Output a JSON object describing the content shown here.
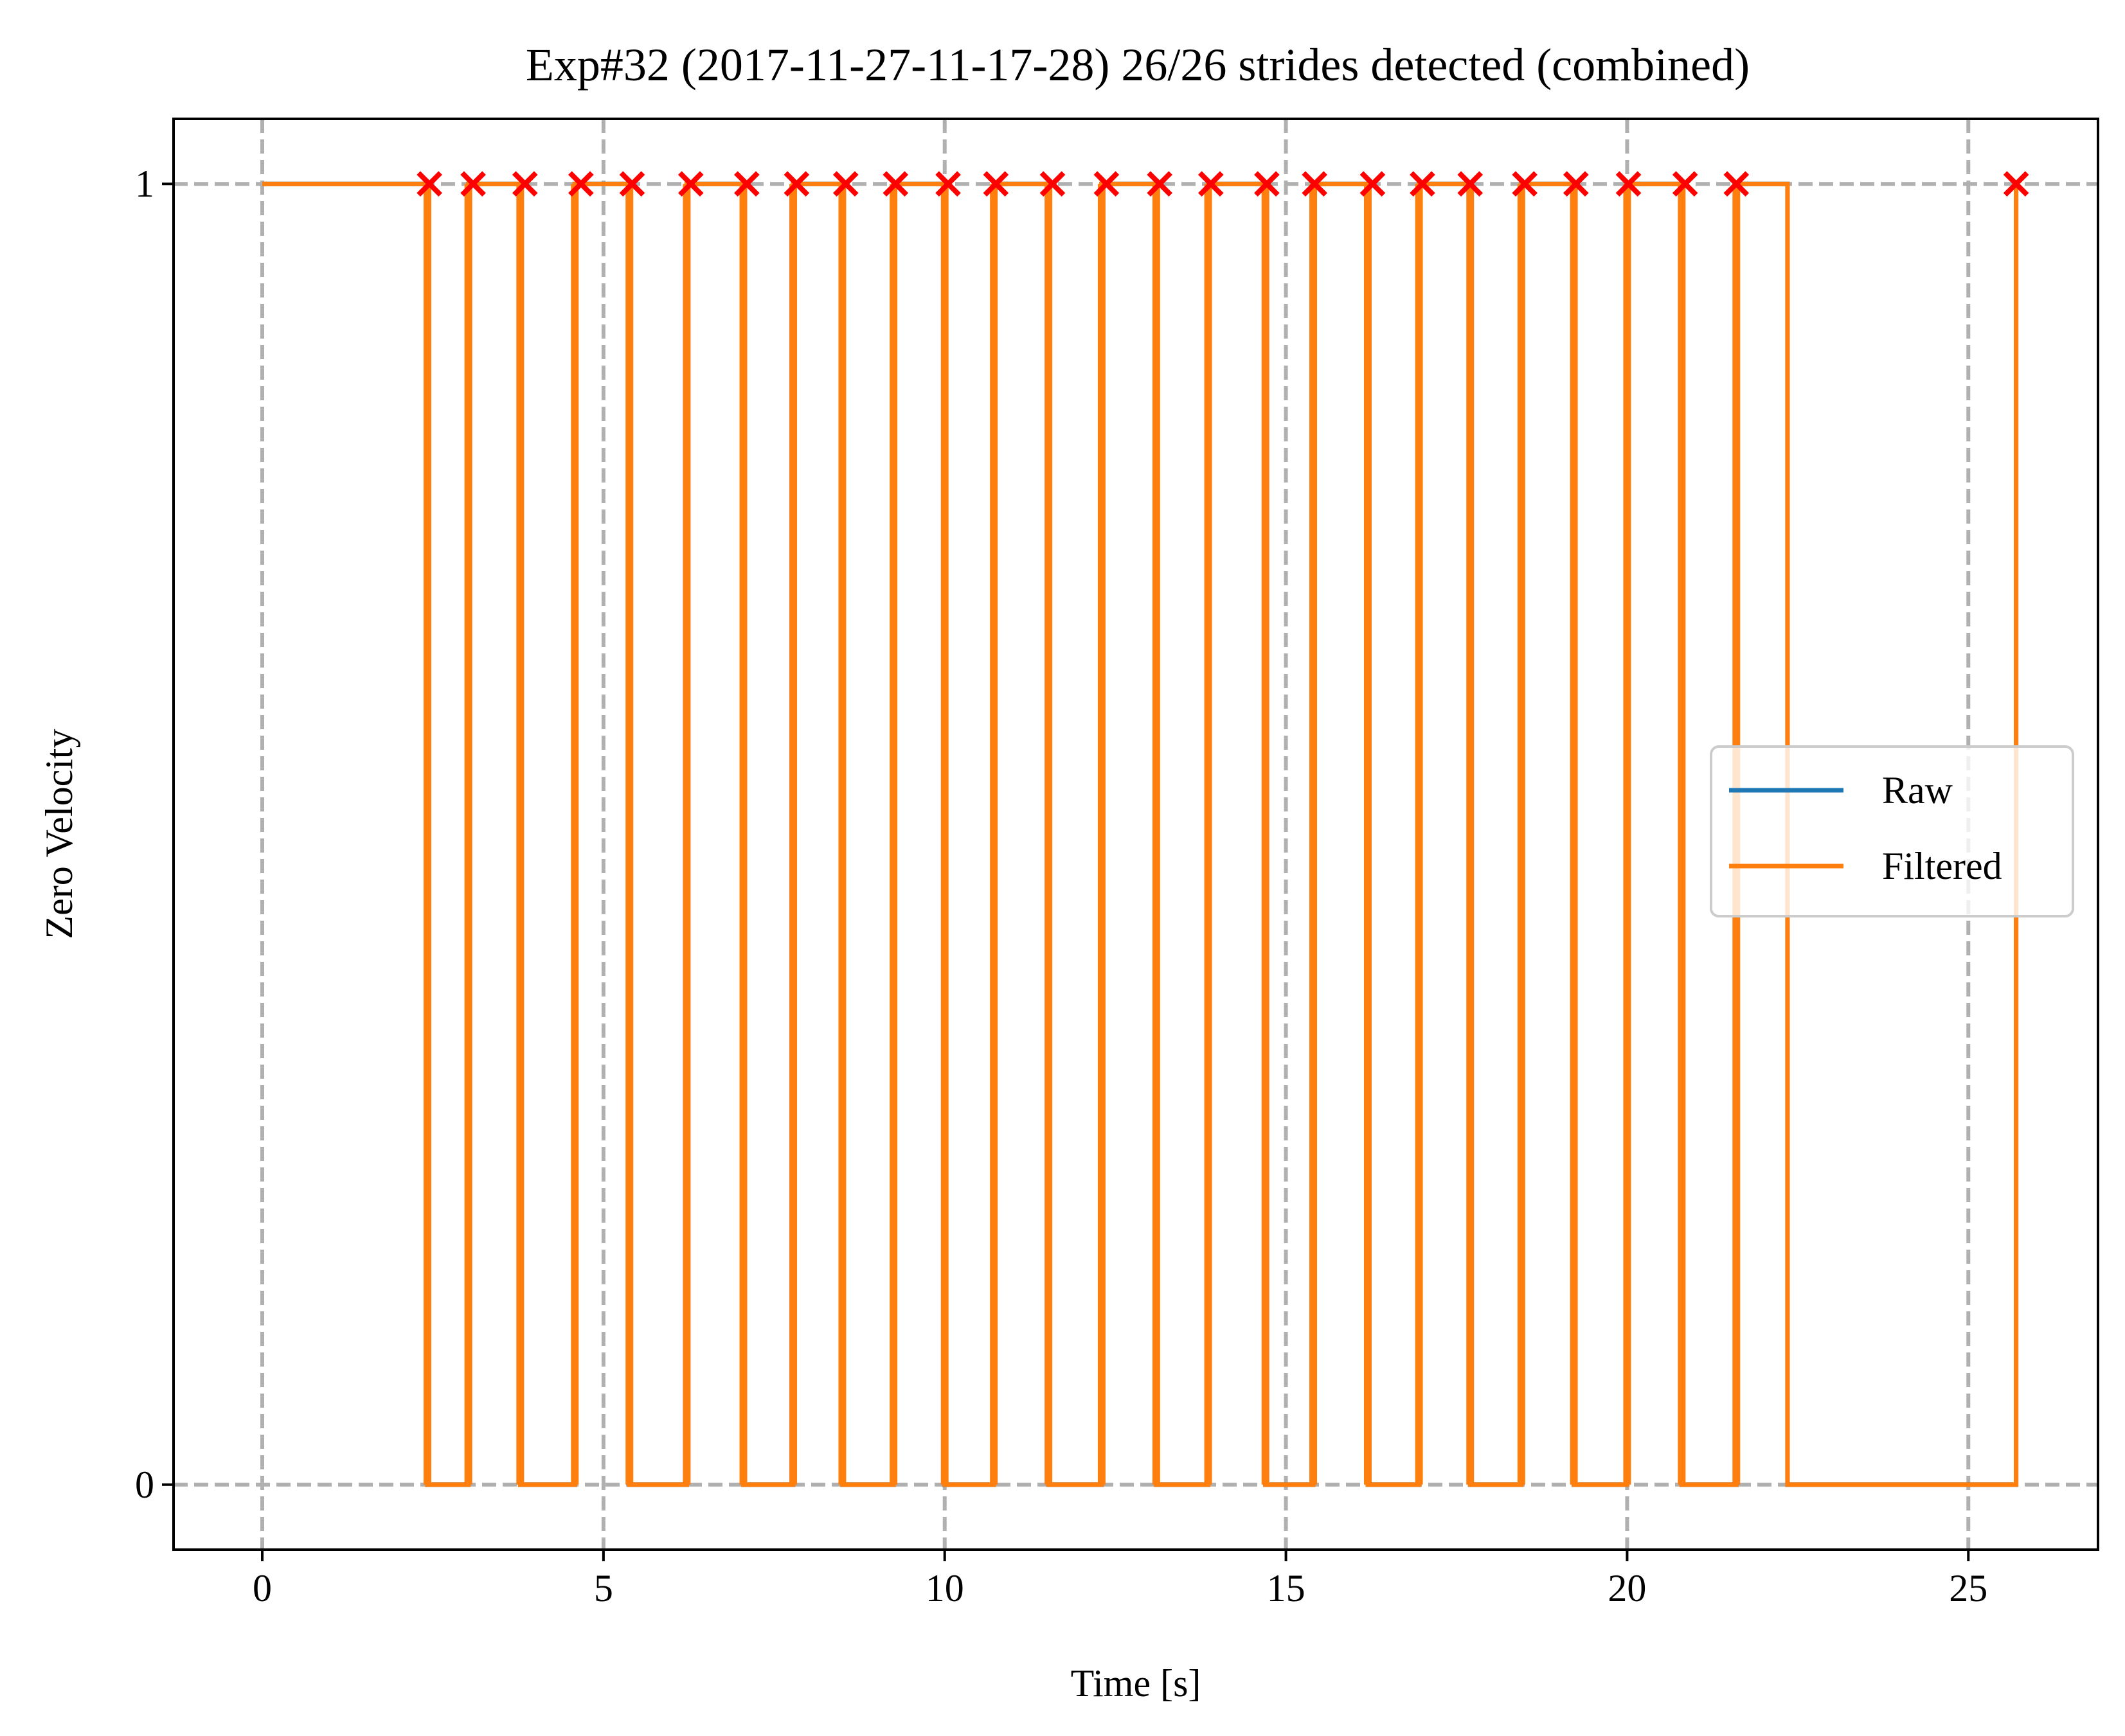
{
  "chart_data": {
    "type": "line",
    "title": "Exp#32 (2017-11-27-11-17-28) 26/26 strides detected (combined)",
    "xlabel": "Time [s]",
    "ylabel": "Zero Velocity",
    "xlim": [
      -1.3,
      26.9
    ],
    "ylim": [
      -0.05,
      1.05
    ],
    "xticks": [
      0,
      5,
      10,
      15,
      20,
      25
    ],
    "xtick_labels": [
      "0",
      "5",
      "10",
      "15",
      "20",
      "25"
    ],
    "yticks": [
      0,
      1
    ],
    "ytick_labels": [
      "0",
      "1"
    ],
    "grid": true,
    "legend_position": "center-right",
    "series": [
      {
        "name": "Raw",
        "color": "#1f77b4",
        "style": "step",
        "x": [
          0,
          2.42,
          3.02,
          3.78,
          4.58,
          5.38,
          6.22,
          7.05,
          7.78,
          8.5,
          9.25,
          10.0,
          10.72,
          11.52,
          12.3,
          13.1,
          13.86,
          14.7,
          15.4,
          16.2,
          16.95,
          17.7,
          18.45,
          19.22,
          20.0,
          20.8,
          21.6,
          22.35,
          25.7
        ],
        "y": [
          1,
          0,
          1,
          0,
          1,
          0,
          1,
          0,
          1,
          0,
          1,
          0,
          1,
          0,
          1,
          0,
          1,
          0,
          1,
          0,
          1,
          0,
          1,
          0,
          1,
          0,
          1,
          0,
          1
        ]
      },
      {
        "name": "Filtered",
        "color": "#ff7f0e",
        "style": "step",
        "x": [
          0,
          2.42,
          3.02,
          3.78,
          4.58,
          5.38,
          6.22,
          7.05,
          7.78,
          8.5,
          9.25,
          10.0,
          10.72,
          11.52,
          12.3,
          13.1,
          13.86,
          14.7,
          15.4,
          16.2,
          16.95,
          17.7,
          18.45,
          19.22,
          20.0,
          20.8,
          21.6,
          22.35,
          25.7
        ],
        "y": [
          1,
          0,
          1,
          0,
          1,
          0,
          1,
          0,
          1,
          0,
          1,
          0,
          1,
          0,
          1,
          0,
          1,
          0,
          1,
          0,
          1,
          0,
          1,
          0,
          1,
          0,
          1,
          0,
          1
        ]
      }
    ],
    "stride_pulses": [
      [
        2.42,
        3.02
      ],
      [
        3.02,
        3.78
      ],
      [
        3.78,
        4.58
      ],
      [
        4.58,
        5.38
      ],
      [
        5.38,
        6.22
      ],
      [
        6.22,
        7.05
      ],
      [
        7.05,
        7.78
      ],
      [
        7.78,
        8.5
      ],
      [
        8.5,
        9.25
      ],
      [
        9.25,
        10.0
      ],
      [
        10.0,
        10.72
      ],
      [
        10.72,
        11.52
      ],
      [
        11.52,
        12.3
      ],
      [
        12.3,
        13.1
      ],
      [
        13.1,
        13.86
      ],
      [
        13.86,
        14.7
      ],
      [
        14.7,
        15.4
      ],
      [
        15.4,
        16.2
      ],
      [
        16.2,
        16.95
      ],
      [
        16.95,
        17.7
      ],
      [
        17.7,
        18.45
      ],
      [
        18.45,
        19.22
      ],
      [
        19.22,
        20.0
      ],
      [
        20.0,
        20.8
      ],
      [
        20.8,
        21.6
      ],
      [
        21.6,
        22.35
      ]
    ],
    "stride_markers": {
      "color": "#ff0000",
      "marker": "x",
      "x": [
        2.45,
        3.09,
        3.85,
        4.67,
        5.42,
        6.28,
        7.1,
        7.83,
        8.55,
        9.28,
        10.05,
        10.75,
        11.58,
        12.37,
        13.15,
        13.9,
        14.72,
        15.42,
        16.27,
        17.0,
        17.7,
        18.5,
        19.25,
        20.02,
        20.85,
        21.6,
        25.7
      ],
      "y": 1
    },
    "colors": {
      "grid": "#b0b0b0",
      "axes": "#000000",
      "background": "#ffffff"
    }
  }
}
